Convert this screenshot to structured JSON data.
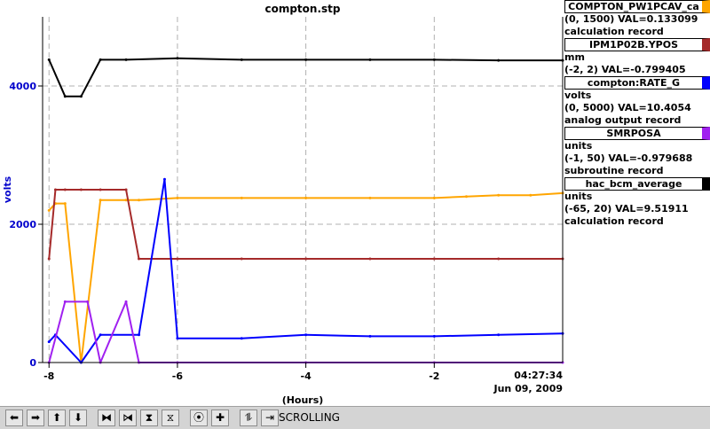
{
  "chart_data": {
    "type": "line",
    "title": "compton.stp",
    "ylabel": "volts",
    "xlabel": "(Hours)",
    "end_time": "04:27:34",
    "end_date": "Jun 09, 2009",
    "xlim": [
      -8.1,
      0
    ],
    "ylim": [
      0,
      5000
    ],
    "x_ticks": [
      -8,
      -6,
      -4,
      -2
    ],
    "x_tick_labels": [
      "-8",
      "-6",
      "-4",
      "-2"
    ],
    "y_ticks": [
      0,
      2000,
      4000
    ],
    "y_tick_labels": [
      "0",
      "2000",
      "4000"
    ],
    "grid": true,
    "series": [
      {
        "name": "COMPTON_PW1PCAV_ca",
        "color": "#ffa500",
        "range": "(0, 1500)",
        "value": "VAL=0.133099",
        "record": "calculation record",
        "x": [
          -8.0,
          -7.9,
          -7.75,
          -7.5,
          -7.2,
          -6.8,
          -6.6,
          -6.0,
          -5.0,
          -4.0,
          -3.0,
          -2.0,
          -1.5,
          -1.0,
          -0.5,
          0.0
        ],
        "values": [
          2200,
          2300,
          2300,
          0,
          2350,
          2350,
          2350,
          2380,
          2380,
          2380,
          2380,
          2380,
          2400,
          2420,
          2420,
          2450
        ]
      },
      {
        "name": "IPM1P02B.YPOS",
        "color": "#a52a2a",
        "units": "mm",
        "range": "(-2, 2)",
        "value": "VAL=-0.799405",
        "record": "",
        "x": [
          -8.0,
          -7.9,
          -7.75,
          -7.5,
          -7.2,
          -6.8,
          -6.6,
          -6.0,
          -5.0,
          -4.0,
          -3.0,
          -2.0,
          -1.0,
          0.0
        ],
        "values": [
          1500,
          2500,
          2500,
          2500,
          2500,
          2500,
          1500,
          1500,
          1500,
          1500,
          1500,
          1500,
          1500,
          1500
        ]
      },
      {
        "name": "compton:RATE_G",
        "color": "#0000ff",
        "units": "volts",
        "range": "(0, 5000)",
        "value": "VAL=10.4054",
        "record": "analog output record",
        "x": [
          -8.0,
          -7.9,
          -7.5,
          -7.2,
          -6.6,
          -6.2,
          -6.0,
          -5.0,
          -4.0,
          -3.0,
          -2.0,
          -1.0,
          0.0
        ],
        "values": [
          300,
          400,
          0,
          400,
          400,
          2650,
          350,
          350,
          400,
          380,
          380,
          400,
          420
        ]
      },
      {
        "name": "SMRPOSA",
        "color": "#a020f0",
        "units": "units",
        "range": "(-1, 50)",
        "value": "VAL=-0.979688",
        "record": "subroutine record",
        "x": [
          -8.0,
          -7.75,
          -7.4,
          -7.2,
          -6.8,
          -6.6,
          -6.0,
          -4.0,
          -2.0,
          0.0
        ],
        "values": [
          0,
          880,
          880,
          0,
          880,
          0,
          0,
          0,
          0,
          0
        ]
      },
      {
        "name": "hac_bcm_average",
        "color": "#000000",
        "units": "units",
        "range": "(-65, 20)",
        "value": "VAL=9.51911",
        "record": "calculation record",
        "x": [
          -8.0,
          -7.75,
          -7.5,
          -7.2,
          -6.8,
          -6.0,
          -5.0,
          -4.0,
          -3.0,
          -2.0,
          -1.0,
          0.0
        ],
        "values": [
          4380,
          3850,
          3850,
          4380,
          4380,
          4400,
          4380,
          4380,
          4380,
          4380,
          4370,
          4370
        ]
      }
    ]
  },
  "legend": [
    {
      "box": "COMPTON_PW1PCAV_ca",
      "color": "#ffa500",
      "lines": [
        "(0, 1500) VAL=0.133099",
        "calculation record"
      ]
    },
    {
      "box": "IPM1P02B.YPOS",
      "color": "#a52a2a",
      "lines": [
        "mm",
        "(-2, 2) VAL=-0.799405"
      ]
    },
    {
      "box": "compton:RATE_G",
      "color": "#0000ff",
      "lines": [
        "volts",
        "(0, 5000) VAL=10.4054",
        "analog output record"
      ]
    },
    {
      "box": "SMRPOSA",
      "color": "#a020f0",
      "lines": [
        "units",
        "(-1, 50) VAL=-0.979688",
        "subroutine record"
      ]
    },
    {
      "box": "hac_bcm_average",
      "color": "#000000",
      "lines": [
        "units",
        "(-65, 20) VAL=9.51911",
        "calculation record"
      ]
    }
  ],
  "toolbar": {
    "buttons": [
      "left-arrow-icon",
      "right-arrow-icon",
      "up-arrow-icon",
      "down-arrow-icon",
      "zoom-in-x-icon",
      "zoom-out-x-icon",
      "zoom-in-y-icon",
      "zoom-out-y-icon",
      "center-icon",
      "plus-icon",
      "auto-scale-icon",
      "jump-end-icon"
    ],
    "glyphs": [
      "⬅",
      "➡",
      "⬆",
      "⬇",
      "⧓",
      "⧒",
      "⧗",
      "⧖",
      "⦿",
      "✚",
      "⥮",
      "⇥"
    ],
    "status": "SCROLLING"
  }
}
